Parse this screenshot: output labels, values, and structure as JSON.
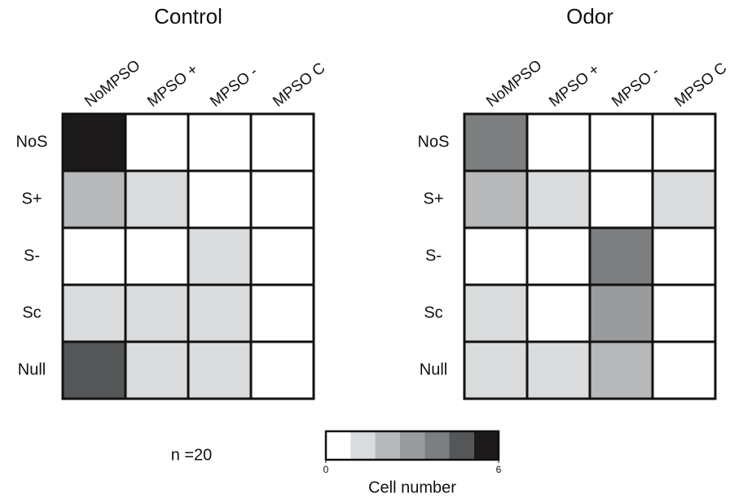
{
  "chart_data": [
    {
      "type": "heatmap",
      "title": "Control",
      "x": [
        "NoMPSO",
        "MPSO +",
        "MPSO -",
        "MPSO C"
      ],
      "y": [
        "NoS",
        "S+",
        "S-",
        "Sc",
        "Null"
      ],
      "values": [
        [
          6,
          0,
          0,
          0
        ],
        [
          2,
          1,
          0,
          0
        ],
        [
          0,
          0,
          1,
          0
        ],
        [
          1,
          1,
          1,
          0
        ],
        [
          5,
          1,
          1,
          0
        ]
      ]
    },
    {
      "type": "heatmap",
      "title": "Odor",
      "x": [
        "NoMPSO",
        "MPSO +",
        "MPSO -",
        "MPSO C"
      ],
      "y": [
        "NoS",
        "S+",
        "S-",
        "Sc",
        "Null"
      ],
      "values": [
        [
          4,
          0,
          0,
          0
        ],
        [
          2,
          1,
          0,
          1
        ],
        [
          0,
          0,
          4,
          0
        ],
        [
          1,
          0,
          3,
          0
        ],
        [
          1,
          1,
          2,
          0
        ]
      ]
    }
  ],
  "colorbar": {
    "label": "Cell number",
    "zlim": [
      0,
      6
    ],
    "zticks": [
      0,
      6
    ],
    "colors": [
      "#ffffff",
      "#d9dbdd",
      "#b6b8ba",
      "#999b9d",
      "#7c7e80",
      "#545658",
      "#1c1a1b"
    ]
  },
  "annotation": "n =20"
}
